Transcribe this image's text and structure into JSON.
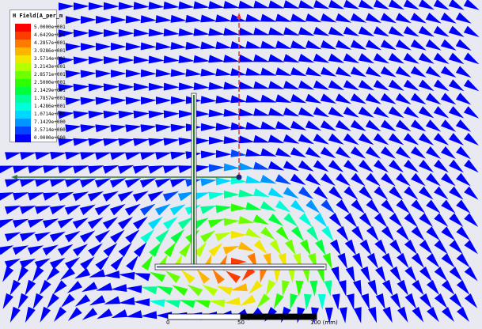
{
  "legend": {
    "title": "H Field[A_per_m",
    "entries": [
      {
        "label": "5.0000e+001",
        "color": "#ff0000"
      },
      {
        "label": "4.6429e+001",
        "color": "#ff3c00"
      },
      {
        "label": "4.2857e+001",
        "color": "#ff7a00"
      },
      {
        "label": "3.9286e+001",
        "color": "#ffb400"
      },
      {
        "label": "3.5714e+001",
        "color": "#f2e600"
      },
      {
        "label": "3.2143e+001",
        "color": "#b4ff00"
      },
      {
        "label": "2.8571e+001",
        "color": "#6eff00"
      },
      {
        "label": "2.5000e+001",
        "color": "#2eff00"
      },
      {
        "label": "2.1429e+001",
        "color": "#00ff3c"
      },
      {
        "label": "1.7857e+001",
        "color": "#00ff96"
      },
      {
        "label": "1.4286e+001",
        "color": "#00ffd8"
      },
      {
        "label": "1.0714e+001",
        "color": "#00d8ff"
      },
      {
        "label": "7.1429e+000",
        "color": "#0096ff"
      },
      {
        "label": "3.5714e+000",
        "color": "#0046ff"
      },
      {
        "label": "0.0000e+000",
        "color": "#0000ff"
      }
    ]
  },
  "scale": {
    "labels": [
      "0",
      "50",
      "100 (mm)"
    ]
  },
  "colors": {
    "background": "#e8e8f0",
    "conductor": "#2e7d32",
    "axis_red": "#e53935",
    "axis_blue": "#1a237e"
  }
}
